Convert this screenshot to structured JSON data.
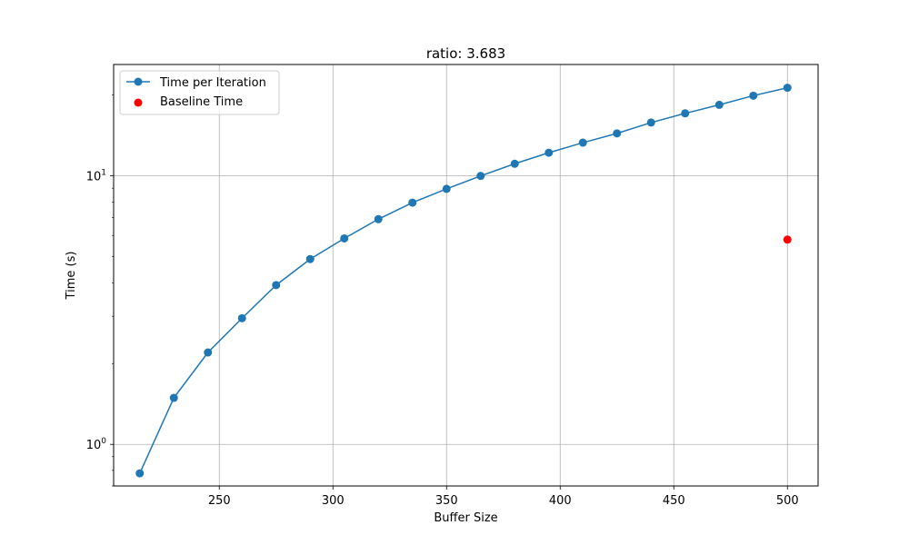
{
  "chart_data": {
    "type": "line",
    "title": "ratio: 3.683",
    "xlabel": "Buffer Size",
    "ylabel": "Time (s)",
    "xlim": [
      203.5,
      513.5
    ],
    "ylim": [
      0.7,
      26
    ],
    "y_scale": "log",
    "grid": true,
    "legend_position": "top-left",
    "x_ticks": [
      250,
      300,
      350,
      400,
      450,
      500
    ],
    "y_ticks": [
      {
        "value": 1,
        "base": "10",
        "exp": "0"
      },
      {
        "value": 10,
        "base": "10",
        "exp": "1"
      }
    ],
    "series": [
      {
        "name": "Time per Iteration",
        "kind": "line-marker",
        "color": "#1f77b4",
        "x": [
          215,
          230,
          245,
          260,
          275,
          290,
          305,
          320,
          335,
          350,
          365,
          380,
          395,
          410,
          425,
          440,
          455,
          470,
          485,
          500
        ],
        "y": [
          0.78,
          1.49,
          2.2,
          2.95,
          3.92,
          4.9,
          5.85,
          6.9,
          7.95,
          8.95,
          10.0,
          11.1,
          12.2,
          13.3,
          14.4,
          15.8,
          17.1,
          18.4,
          19.9,
          21.3
        ]
      },
      {
        "name": "Baseline Time",
        "kind": "scatter",
        "color": "#ff0000",
        "x": [
          500
        ],
        "y": [
          5.79
        ]
      }
    ]
  }
}
